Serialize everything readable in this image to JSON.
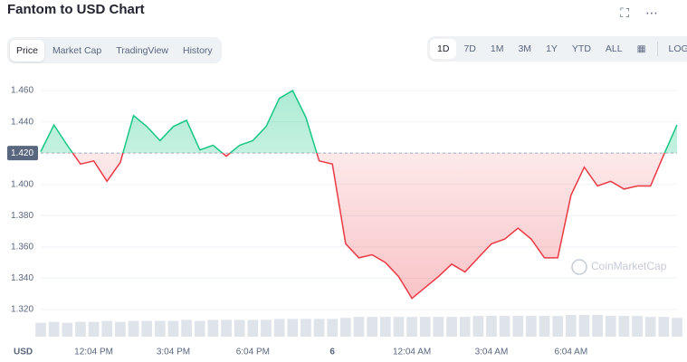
{
  "header": {
    "title": "Fantom to USD Chart",
    "tabs": [
      "Price",
      "Market Cap",
      "TradingView",
      "History"
    ],
    "ranges": [
      "1D",
      "7D",
      "1M",
      "3M",
      "1Y",
      "YTD",
      "ALL"
    ],
    "log": "LOG"
  },
  "chart_data": {
    "type": "line",
    "watermark": "CoinMarketCap",
    "y_unit_label": "USD",
    "categories": [
      null,
      null,
      null,
      null,
      "12:04 PM",
      null,
      null,
      null,
      null,
      null,
      "3:04 PM",
      null,
      null,
      null,
      null,
      null,
      "6:04 PM",
      null,
      null,
      null,
      null,
      null,
      "6",
      null,
      null,
      null,
      null,
      null,
      "12:04 AM",
      null,
      null,
      null,
      null,
      null,
      "3:04 AM",
      null,
      null,
      null,
      null,
      null,
      "6:04 AM",
      null,
      null,
      null,
      null,
      null,
      null,
      null,
      null
    ],
    "series": [
      {
        "name": "Price",
        "color_up": "#16c784",
        "color_down": "#ea3943",
        "values": [
          1.421,
          1.438,
          1.425,
          1.413,
          1.415,
          1.402,
          1.414,
          1.444,
          1.437,
          1.428,
          1.437,
          1.441,
          1.422,
          1.425,
          1.418,
          1.425,
          1.428,
          1.437,
          1.455,
          1.46,
          1.443,
          1.415,
          1.413,
          1.362,
          1.353,
          1.355,
          1.35,
          1.341,
          1.327,
          1.334,
          1.341,
          1.349,
          1.344,
          1.353,
          1.362,
          1.365,
          1.372,
          1.365,
          1.353,
          1.353,
          1.393,
          1.411,
          1.399,
          1.402,
          1.397,
          1.399,
          1.399,
          1.419,
          1.438
        ]
      }
    ],
    "volume": [
      14,
      15,
      14,
      15,
      15,
      16,
      15,
      16,
      16,
      16,
      16,
      17,
      16,
      17,
      17,
      17,
      17,
      17,
      18,
      18,
      18,
      18,
      18,
      19,
      20,
      20,
      20,
      20,
      20,
      20,
      20,
      20,
      20,
      21,
      21,
      21,
      21,
      21,
      21,
      21,
      22,
      22,
      22,
      21,
      21,
      21,
      20,
      20,
      19
    ],
    "volume_color": "#dfe3ea",
    "baseline": 1.42,
    "ylim": [
      1.313,
      1.467
    ],
    "yticks": [
      {
        "value": 1.32,
        "label": "1.320"
      },
      {
        "value": 1.34,
        "label": "1.340"
      },
      {
        "value": 1.36,
        "label": "1.360"
      },
      {
        "value": 1.38,
        "label": "1.380"
      },
      {
        "value": 1.4,
        "label": "1.400"
      },
      {
        "value": 1.42,
        "label": "1.420"
      },
      {
        "value": 1.44,
        "label": "1.440"
      },
      {
        "value": 1.46,
        "label": "1.460"
      }
    ],
    "grid": true
  }
}
